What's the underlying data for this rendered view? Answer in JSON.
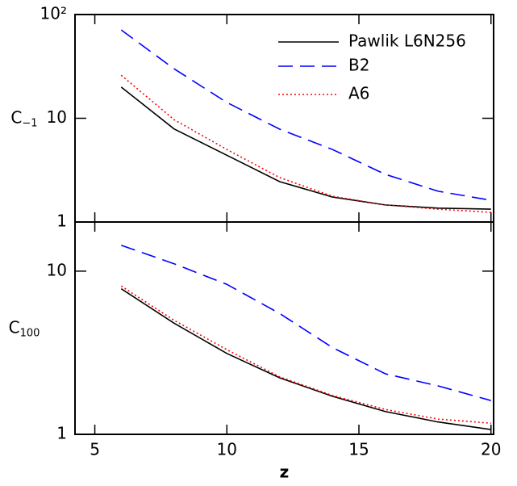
{
  "chart_data": [
    {
      "type": "line",
      "log_y": true,
      "legend": "upper right",
      "ylabel": "C",
      "ylabel_sub": "−1",
      "x": [
        6,
        8,
        10,
        12,
        14,
        16,
        18,
        20
      ],
      "xlim": [
        4.25,
        20.1
      ],
      "xticks": [
        5,
        10,
        15,
        20
      ],
      "ylim": [
        1,
        100
      ],
      "yticks": [
        1,
        10,
        {
          "value": 100,
          "label": "10²"
        }
      ],
      "series": [
        {
          "name": "Pawlik L6N256",
          "color": "#000000",
          "dash": "solid",
          "values": [
            20,
            7.9,
            4.4,
            2.45,
            1.74,
            1.46,
            1.36,
            1.33
          ]
        },
        {
          "name": "B2",
          "color": "#0000ff",
          "dash": "dashed",
          "values": [
            71,
            30,
            14.2,
            7.85,
            5.0,
            2.88,
            1.98,
            1.62
          ]
        },
        {
          "name": "A6",
          "color": "#ff0000",
          "dash": "dotted",
          "values": [
            26,
            9.7,
            5.0,
            2.68,
            1.77,
            1.46,
            1.33,
            1.24
          ]
        }
      ]
    },
    {
      "type": "line",
      "log_y": true,
      "ylabel": "C",
      "ylabel_sub": "100",
      "xlabel": "z",
      "x": [
        6,
        8,
        10,
        12,
        14,
        16,
        18,
        20
      ],
      "xlim": [
        4.25,
        20.1
      ],
      "xticks": [
        5,
        10,
        15,
        20
      ],
      "ylim": [
        1,
        20
      ],
      "yticks": [
        1,
        10
      ],
      "series": [
        {
          "color": "#000000",
          "dash": "solid",
          "values": [
            7.8,
            4.8,
            3.13,
            2.22,
            1.71,
            1.38,
            1.19,
            1.07
          ]
        },
        {
          "color": "#0000ff",
          "dash": "dashed",
          "values": [
            14.4,
            11.1,
            8.3,
            5.5,
            3.4,
            2.35,
            1.98,
            1.61
          ]
        },
        {
          "color": "#ff0000",
          "dash": "dotted",
          "values": [
            8.1,
            5.0,
            3.3,
            2.25,
            1.73,
            1.42,
            1.24,
            1.17
          ]
        }
      ]
    }
  ]
}
